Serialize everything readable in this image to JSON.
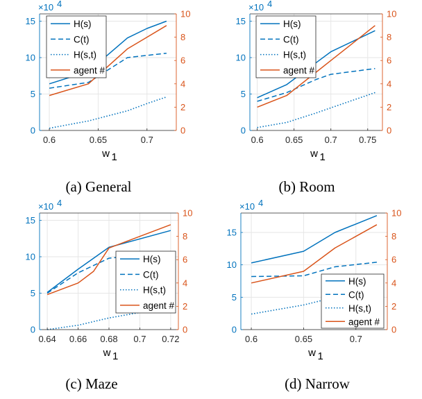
{
  "colors": {
    "left_axis": "#0072BD",
    "right_axis": "#D95319",
    "grid": "#e6e6e6",
    "axis_box": "#262626"
  },
  "chart_data": [
    {
      "type": "line",
      "caption": "(a)  General",
      "xlabel": "w",
      "xlabel_subscript": "1",
      "left_axis_multiplier": "×10",
      "left_axis_multiplier_exp": "4",
      "xlim": [
        0.59,
        0.73
      ],
      "ylim_left": [
        0,
        160000
      ],
      "ylim_right": [
        0,
        10
      ],
      "xticks": [
        0.6,
        0.65,
        0.7
      ],
      "xtick_labels": [
        "0.6",
        "0.65",
        "0.7"
      ],
      "yticks_left": [
        0,
        50000,
        100000,
        150000
      ],
      "ytick_labels_left": [
        "0",
        "5",
        "10",
        "15"
      ],
      "yticks_right": [
        0,
        2,
        4,
        6,
        8,
        10
      ],
      "ytick_labels_right": [
        "0",
        "2",
        "4",
        "6",
        "8",
        "10"
      ],
      "grid": true,
      "legend_position": "top-left",
      "legend_rows": [
        {
          "label": "H(s)",
          "style": "solid",
          "color": "#0072BD"
        },
        {
          "label": "C(t)",
          "style": "dashed",
          "color": "#0072BD"
        },
        {
          "label": "H(s,t)",
          "style": "dotted",
          "color": "#0072BD"
        },
        {
          "label": "agent #",
          "style": "solid",
          "color": "#D95319"
        }
      ],
      "series": [
        {
          "name": "H(s)",
          "axis": "left",
          "style": "solid",
          "color": "#0072BD",
          "x": [
            0.6,
            0.64,
            0.68,
            0.7,
            0.72
          ],
          "y": [
            64000,
            81000,
            127000,
            140000,
            150000
          ]
        },
        {
          "name": "C(t)",
          "axis": "left",
          "style": "dashed",
          "color": "#0072BD",
          "x": [
            0.6,
            0.64,
            0.68,
            0.7,
            0.72
          ],
          "y": [
            58000,
            66000,
            100000,
            103000,
            106000
          ]
        },
        {
          "name": "H(s,t)",
          "axis": "left",
          "style": "dotted",
          "color": "#0072BD",
          "x": [
            0.6,
            0.64,
            0.68,
            0.7,
            0.72
          ],
          "y": [
            3000,
            13000,
            27000,
            37000,
            46000
          ]
        },
        {
          "name": "agent #",
          "axis": "right",
          "style": "solid",
          "color": "#D95319",
          "x": [
            0.6,
            0.64,
            0.68,
            0.7,
            0.72
          ],
          "y": [
            3.0,
            4.0,
            7.0,
            8.0,
            9.0
          ]
        }
      ]
    },
    {
      "type": "line",
      "caption": "(b)  Room",
      "xlabel": "w",
      "xlabel_subscript": "1",
      "left_axis_multiplier": "×10",
      "left_axis_multiplier_exp": "4",
      "xlim": [
        0.59,
        0.77
      ],
      "ylim_left": [
        0,
        160000
      ],
      "ylim_right": [
        0,
        10
      ],
      "xticks": [
        0.6,
        0.65,
        0.7,
        0.75
      ],
      "xtick_labels": [
        "0.6",
        "0.65",
        "0.7",
        "0.75"
      ],
      "yticks_left": [
        0,
        50000,
        100000,
        150000
      ],
      "ytick_labels_left": [
        "0",
        "5",
        "10",
        "15"
      ],
      "yticks_right": [
        0,
        2,
        4,
        6,
        8,
        10
      ],
      "ytick_labels_right": [
        "0",
        "2",
        "4",
        "6",
        "8",
        "10"
      ],
      "grid": true,
      "legend_position": "top-left",
      "legend_rows": [
        {
          "label": "H(s)",
          "style": "solid",
          "color": "#0072BD"
        },
        {
          "label": "C(t)",
          "style": "dashed",
          "color": "#0072BD"
        },
        {
          "label": "H(s,t)",
          "style": "dotted",
          "color": "#0072BD"
        },
        {
          "label": "agent #",
          "style": "solid",
          "color": "#D95319"
        }
      ],
      "series": [
        {
          "name": "H(s)",
          "axis": "left",
          "style": "solid",
          "color": "#0072BD",
          "x": [
            0.6,
            0.64,
            0.68,
            0.7,
            0.76
          ],
          "y": [
            45000,
            63000,
            93000,
            108000,
            137000
          ]
        },
        {
          "name": "C(t)",
          "axis": "left",
          "style": "dashed",
          "color": "#0072BD",
          "x": [
            0.6,
            0.64,
            0.68,
            0.7,
            0.76
          ],
          "y": [
            40000,
            52000,
            70000,
            77000,
            85000
          ]
        },
        {
          "name": "H(s,t)",
          "axis": "left",
          "style": "dotted",
          "color": "#0072BD",
          "x": [
            0.6,
            0.64,
            0.68,
            0.7,
            0.76
          ],
          "y": [
            4000,
            11000,
            24000,
            31000,
            52000
          ]
        },
        {
          "name": "agent #",
          "axis": "right",
          "style": "solid",
          "color": "#D95319",
          "x": [
            0.6,
            0.64,
            0.68,
            0.7,
            0.76
          ],
          "y": [
            2.0,
            3.0,
            5.0,
            6.0,
            9.0
          ]
        }
      ]
    },
    {
      "type": "line",
      "caption": "(c)  Maze",
      "xlabel": "w",
      "xlabel_subscript": "1",
      "left_axis_multiplier": "×10",
      "left_axis_multiplier_exp": "4",
      "xlim": [
        0.635,
        0.725
      ],
      "ylim_left": [
        0,
        160000
      ],
      "ylim_right": [
        0,
        10
      ],
      "xticks": [
        0.64,
        0.66,
        0.68,
        0.7,
        0.72
      ],
      "xtick_labels": [
        "0.64",
        "0.66",
        "0.68",
        "0.7",
        "0.72"
      ],
      "yticks_left": [
        0,
        50000,
        100000,
        150000
      ],
      "ytick_labels_left": [
        "0",
        "5",
        "10",
        "15"
      ],
      "yticks_right": [
        0,
        2,
        4,
        6,
        8,
        10
      ],
      "ytick_labels_right": [
        "0",
        "2",
        "4",
        "6",
        "8",
        "10"
      ],
      "grid": true,
      "legend_position": "right",
      "legend_rows": [
        {
          "label": "H(s)",
          "style": "solid",
          "color": "#0072BD"
        },
        {
          "label": "C(t)",
          "style": "dashed",
          "color": "#0072BD"
        },
        {
          "label": "H(s,t)",
          "style": "dotted",
          "color": "#0072BD"
        },
        {
          "label": "agent #",
          "style": "solid",
          "color": "#D95319"
        }
      ],
      "series": [
        {
          "name": "H(s)",
          "axis": "left",
          "style": "solid",
          "color": "#0072BD",
          "x": [
            0.64,
            0.66,
            0.68,
            0.72
          ],
          "y": [
            51000,
            83000,
            113000,
            136000
          ]
        },
        {
          "name": "C(t)",
          "axis": "left",
          "style": "dashed",
          "color": "#0072BD",
          "x": [
            0.64,
            0.66,
            0.68,
            0.72
          ],
          "y": [
            50000,
            78000,
            98000,
            106000
          ]
        },
        {
          "name": "H(s,t)",
          "axis": "left",
          "style": "dotted",
          "color": "#0072BD",
          "x": [
            0.64,
            0.66,
            0.68,
            0.72
          ],
          "y": [
            0,
            6000,
            16000,
            31000
          ]
        },
        {
          "name": "agent #",
          "axis": "right",
          "style": "solid",
          "color": "#D95319",
          "x": [
            0.64,
            0.66,
            0.67,
            0.68,
            0.72
          ],
          "y": [
            3.0,
            4.0,
            5.0,
            7.0,
            9.0
          ]
        }
      ]
    },
    {
      "type": "line",
      "caption": "(d)  Narrow",
      "xlabel": "w",
      "xlabel_subscript": "1",
      "left_axis_multiplier": "×10",
      "left_axis_multiplier_exp": "4",
      "xlim": [
        0.59,
        0.73
      ],
      "ylim_left": [
        0,
        180000
      ],
      "ylim_right": [
        0,
        10
      ],
      "xticks": [
        0.6,
        0.65,
        0.7
      ],
      "xtick_labels": [
        "0.6",
        "0.65",
        "0.7"
      ],
      "yticks_left": [
        0,
        50000,
        100000,
        150000
      ],
      "ytick_labels_left": [
        "0",
        "5",
        "10",
        "15"
      ],
      "yticks_right": [
        0,
        2,
        4,
        6,
        8,
        10
      ],
      "ytick_labels_right": [
        "0",
        "2",
        "4",
        "6",
        "8",
        "10"
      ],
      "grid": true,
      "legend_position": "bottom-right",
      "legend_rows": [
        {
          "label": "H(s)",
          "style": "solid",
          "color": "#0072BD"
        },
        {
          "label": "C(t)",
          "style": "dashed",
          "color": "#0072BD"
        },
        {
          "label": "H(s,t)",
          "style": "dotted",
          "color": "#0072BD"
        },
        {
          "label": "agent #",
          "style": "solid",
          "color": "#D95319"
        }
      ],
      "series": [
        {
          "name": "H(s)",
          "axis": "left",
          "style": "solid",
          "color": "#0072BD",
          "x": [
            0.6,
            0.65,
            0.68,
            0.72
          ],
          "y": [
            103000,
            121000,
            150000,
            176000
          ]
        },
        {
          "name": "C(t)",
          "axis": "left",
          "style": "dashed",
          "color": "#0072BD",
          "x": [
            0.6,
            0.65,
            0.68,
            0.72
          ],
          "y": [
            82000,
            83000,
            97000,
            104000
          ]
        },
        {
          "name": "H(s,t)",
          "axis": "left",
          "style": "dotted",
          "color": "#0072BD",
          "x": [
            0.6,
            0.65,
            0.68,
            0.72
          ],
          "y": [
            24000,
            38000,
            50000,
            70000
          ]
        },
        {
          "name": "agent #",
          "axis": "right",
          "style": "solid",
          "color": "#D95319",
          "x": [
            0.6,
            0.65,
            0.68,
            0.72
          ],
          "y": [
            4.0,
            5.0,
            7.0,
            9.0
          ]
        }
      ]
    }
  ]
}
